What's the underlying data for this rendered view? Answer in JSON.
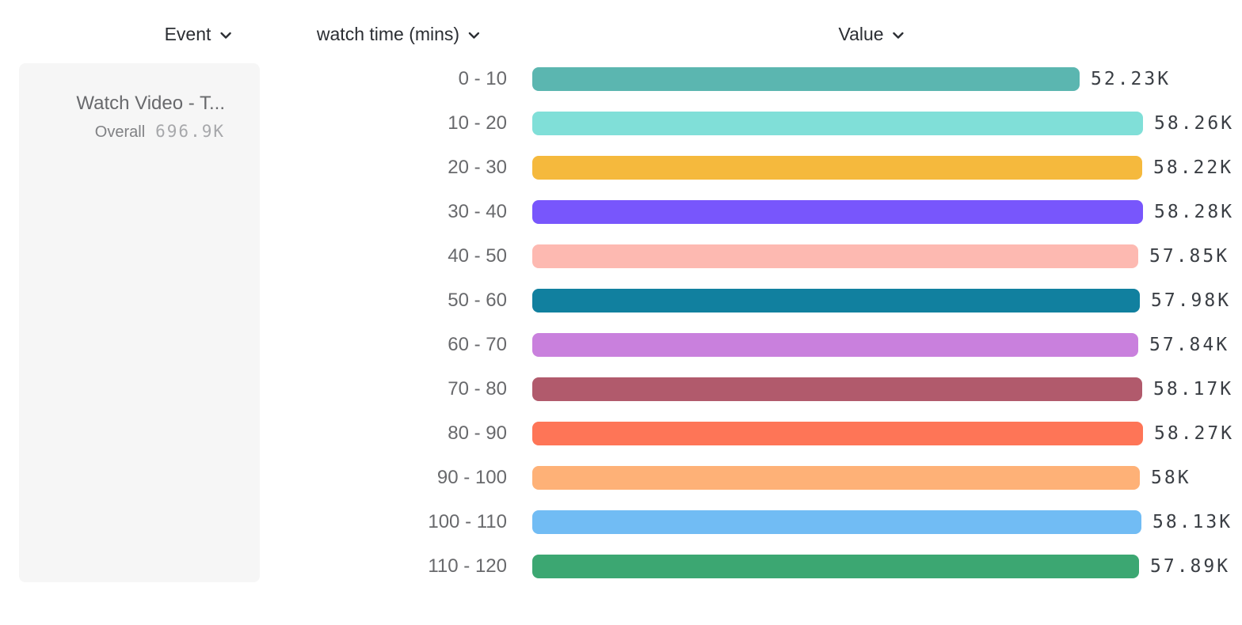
{
  "header": {
    "columns": [
      {
        "label": "Event"
      },
      {
        "label": "watch time (mins)"
      },
      {
        "label": "Value"
      }
    ]
  },
  "event_panel": {
    "name": "Watch Video - T...",
    "overall_label": "Overall",
    "overall_value": "696.9K"
  },
  "chart_data": {
    "type": "bar",
    "orientation": "horizontal",
    "group_by": "watch time (mins)",
    "categories": [
      "0 - 10",
      "10 - 20",
      "20 - 30",
      "30 - 40",
      "40 - 50",
      "50 - 60",
      "60 - 70",
      "70 - 80",
      "80 - 90",
      "90 - 100",
      "100 - 110",
      "110 - 120"
    ],
    "values": [
      52230,
      58260,
      58220,
      58280,
      57850,
      57980,
      57840,
      58170,
      58270,
      58000,
      58130,
      57890
    ],
    "value_labels": [
      "52.23K",
      "58.26K",
      "58.22K",
      "58.28K",
      "57.85K",
      "57.98K",
      "57.84K",
      "58.17K",
      "58.27K",
      "58K",
      "58.13K",
      "57.89K"
    ],
    "colors": [
      "#5bb6b0",
      "#80dfd8",
      "#f5b93d",
      "#7856fc",
      "#fdb9b1",
      "#11809f",
      "#c980dd",
      "#b15a6c",
      "#fe7557",
      "#feb177",
      "#71bcf4",
      "#3ca772"
    ],
    "title": "",
    "xlabel": "",
    "ylabel": "",
    "xlim": [
      0,
      58280
    ],
    "grid": false,
    "legend": "none"
  },
  "icons": {
    "chevron_down": "chevron-down"
  },
  "layout_colors": {
    "header_text": "#2b2e33",
    "category_text": "#68696c",
    "value_text": "#3a3e44",
    "panel_bg": "#f6f6f6"
  }
}
